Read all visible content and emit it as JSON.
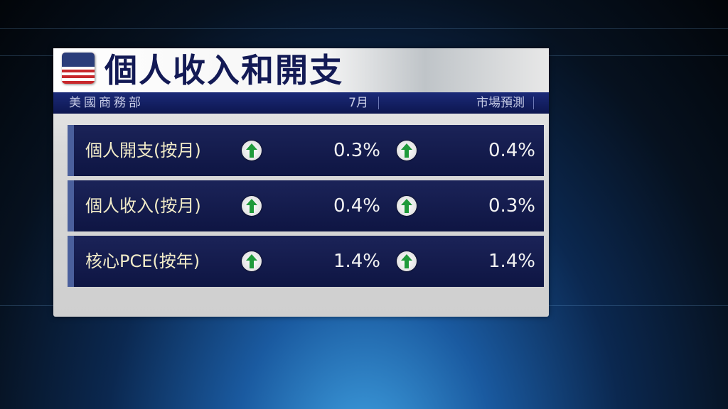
{
  "title": "個人收入和開支",
  "header": {
    "source": "美國商務部",
    "col_actual": "7月",
    "col_forecast": "市場預測"
  },
  "colors": {
    "navy": "#131a55",
    "arrow_up": "#1f9a3a",
    "label_text": "#f2ecc8"
  },
  "rows": [
    {
      "label": "個人開支(按月)",
      "actual": "0.3%",
      "actual_icon": "arrow-up-icon",
      "forecast": "0.4%",
      "forecast_icon": "arrow-up-icon"
    },
    {
      "label": "個人收入(按月)",
      "actual": "0.4%",
      "actual_icon": "arrow-up-icon",
      "forecast": "0.3%",
      "forecast_icon": "arrow-up-icon"
    },
    {
      "label": "核心PCE(按年)",
      "actual": "1.4%",
      "actual_icon": "arrow-up-icon",
      "forecast": "1.4%",
      "forecast_icon": "arrow-up-icon"
    }
  ]
}
